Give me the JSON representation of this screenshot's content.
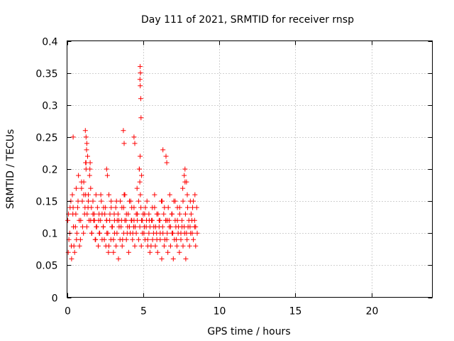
{
  "chart_data": {
    "type": "scatter",
    "title": "Day 111 of 2021, SRMTID for receiver rnsp",
    "xlabel": "GPS time / hours",
    "ylabel": "SRMTID / TECUs",
    "xlim": [
      0,
      24
    ],
    "ylim": [
      0,
      0.4
    ],
    "grid": true,
    "x_ticks": [
      0,
      5,
      10,
      15,
      20
    ],
    "x_tick_labels": [
      "0",
      "5",
      "10",
      "15",
      "20"
    ],
    "y_ticks": [
      0,
      0.05,
      0.1,
      0.15,
      0.2,
      0.25,
      0.3,
      0.35,
      0.4
    ],
    "y_tick_labels": [
      "0",
      "0.05",
      "0.1",
      "0.15",
      "0.2",
      "0.25",
      "0.3",
      "0.35",
      "0.4"
    ],
    "marker": "+",
    "marker_color": "#ff0000",
    "series": [
      {
        "x": [
          0.05,
          0.12,
          0.2,
          0.28,
          0.35,
          0.42,
          0.5,
          0.58,
          0.65,
          0.72,
          0.8,
          0.88,
          0.95,
          1.02,
          1.1,
          1.18,
          1.25,
          1.32,
          1.4,
          1.48,
          1.55,
          1.62,
          1.7,
          1.78,
          1.85,
          1.92,
          2.0,
          2.08,
          2.15,
          2.22,
          2.3,
          2.38,
          2.45,
          2.52,
          2.6,
          2.68,
          2.75,
          2.82,
          2.9,
          2.98,
          3.05,
          3.12,
          3.2,
          3.28,
          3.35,
          3.42,
          3.5,
          3.58,
          3.65,
          3.72,
          3.8,
          3.88,
          3.95,
          4.02,
          4.1,
          4.18,
          4.25,
          4.32,
          4.4,
          4.48,
          4.55,
          4.62,
          4.7,
          4.75,
          4.78,
          4.8,
          4.82,
          4.85,
          4.9,
          4.95,
          5.0,
          5.08,
          5.15,
          5.22,
          5.3,
          5.38,
          5.45,
          5.52,
          5.6,
          5.68,
          5.75,
          5.82,
          5.9,
          5.98,
          6.05,
          6.12,
          6.2,
          6.28,
          6.35,
          6.42,
          6.5,
          6.58,
          6.65,
          6.72,
          6.8,
          6.88,
          6.95,
          7.02,
          7.1,
          7.18,
          7.25,
          7.32,
          7.4,
          7.48,
          7.55,
          7.62,
          7.7,
          7.78,
          7.85,
          7.92,
          8.0,
          8.08,
          8.15,
          8.22,
          8.3,
          8.38,
          8.45,
          8.52,
          0.08,
          0.18,
          0.3,
          0.38,
          0.45,
          0.55,
          0.62,
          0.7,
          0.82,
          0.9,
          1.0,
          1.08,
          1.15,
          1.22,
          1.3,
          1.38,
          1.45,
          1.55,
          1.62,
          1.7,
          1.8,
          1.88,
          1.95,
          2.05,
          2.12,
          2.2,
          2.3,
          2.38,
          2.48,
          2.55,
          2.62,
          2.72,
          2.8,
          2.88,
          2.95,
          3.05,
          3.12,
          3.22,
          3.3,
          3.38,
          3.48,
          3.55,
          3.62,
          3.72,
          3.8,
          3.9,
          3.98,
          4.05,
          4.15,
          4.22,
          4.3,
          4.38,
          4.45,
          4.55,
          4.62,
          4.7,
          4.78,
          4.88,
          4.95,
          5.05,
          5.12,
          5.2,
          5.3,
          5.38,
          5.45,
          5.55,
          5.62,
          5.7,
          5.8,
          5.88,
          5.95,
          6.05,
          6.12,
          6.22,
          6.3,
          6.38,
          6.48,
          6.55,
          6.62,
          6.72,
          6.8,
          6.9,
          6.98,
          7.05,
          7.15,
          7.22,
          7.3,
          7.38,
          7.48,
          7.55,
          7.62,
          7.72,
          7.8,
          7.88,
          7.95,
          8.05,
          8.12,
          8.2,
          8.3,
          8.38,
          8.45,
          8.55,
          0.1,
          0.25,
          0.4,
          0.6,
          0.75,
          0.95,
          1.1,
          1.25,
          1.4,
          1.6,
          1.75,
          1.9,
          2.1,
          2.25,
          2.4,
          2.6,
          2.75,
          2.9,
          3.1,
          3.25,
          3.4,
          3.6,
          3.75,
          3.9,
          4.1,
          4.25,
          4.4,
          4.6,
          4.75,
          4.9,
          5.1,
          5.25,
          5.4,
          5.6,
          5.75,
          5.9,
          6.1,
          6.25,
          6.4,
          6.6,
          6.75,
          6.9,
          7.1,
          7.25,
          7.4,
          7.6,
          7.75,
          7.9,
          8.1,
          8.25,
          8.4,
          1.2,
          1.25,
          1.3,
          1.35,
          1.22,
          1.28,
          1.5,
          1.52,
          4.8,
          4.82,
          4.79,
          4.81,
          4.84,
          4.86,
          0.4,
          6.3,
          7.7,
          7.75,
          7.85,
          3.7,
          3.75,
          4.4,
          4.45,
          6.5,
          6.55,
          2.6,
          2.65
        ],
        "y": [
          0.12,
          0.09,
          0.14,
          0.08,
          0.16,
          0.11,
          0.07,
          0.13,
          0.1,
          0.15,
          0.12,
          0.09,
          0.17,
          0.11,
          0.18,
          0.14,
          0.2,
          0.13,
          0.16,
          0.19,
          0.12,
          0.1,
          0.15,
          0.13,
          0.09,
          0.11,
          0.14,
          0.12,
          0.1,
          0.16,
          0.13,
          0.11,
          0.09,
          0.14,
          0.12,
          0.1,
          0.08,
          0.13,
          0.15,
          0.11,
          0.09,
          0.12,
          0.14,
          0.1,
          0.13,
          0.11,
          0.15,
          0.12,
          0.09,
          0.14,
          0.16,
          0.12,
          0.1,
          0.13,
          0.11,
          0.15,
          0.12,
          0.1,
          0.14,
          0.11,
          0.13,
          0.12,
          0.15,
          0.2,
          0.18,
          0.22,
          0.16,
          0.14,
          0.12,
          0.1,
          0.13,
          0.11,
          0.14,
          0.12,
          0.09,
          0.13,
          0.11,
          0.08,
          0.12,
          0.1,
          0.14,
          0.11,
          0.09,
          0.13,
          0.12,
          0.1,
          0.15,
          0.11,
          0.13,
          0.09,
          0.12,
          0.1,
          0.14,
          0.12,
          0.11,
          0.13,
          0.1,
          0.15,
          0.12,
          0.09,
          0.14,
          0.11,
          0.13,
          0.1,
          0.12,
          0.15,
          0.11,
          0.13,
          0.1,
          0.14,
          0.12,
          0.11,
          0.13,
          0.1,
          0.15,
          0.12,
          0.11,
          0.14,
          0.07,
          0.1,
          0.06,
          0.13,
          0.08,
          0.11,
          0.09,
          0.14,
          0.08,
          0.12,
          0.15,
          0.1,
          0.13,
          0.16,
          0.11,
          0.14,
          0.12,
          0.17,
          0.1,
          0.13,
          0.12,
          0.09,
          0.11,
          0.08,
          0.1,
          0.12,
          0.09,
          0.11,
          0.13,
          0.08,
          0.1,
          0.07,
          0.12,
          0.09,
          0.11,
          0.07,
          0.1,
          0.08,
          0.12,
          0.06,
          0.09,
          0.11,
          0.08,
          0.1,
          0.12,
          0.09,
          0.11,
          0.07,
          0.1,
          0.12,
          0.09,
          0.11,
          0.08,
          0.1,
          0.13,
          0.09,
          0.11,
          0.08,
          0.12,
          0.1,
          0.09,
          0.11,
          0.08,
          0.1,
          0.07,
          0.12,
          0.09,
          0.11,
          0.08,
          0.1,
          0.07,
          0.11,
          0.09,
          0.06,
          0.1,
          0.08,
          0.12,
          0.09,
          0.07,
          0.11,
          0.08,
          0.1,
          0.06,
          0.09,
          0.11,
          0.08,
          0.1,
          0.07,
          0.09,
          0.11,
          0.08,
          0.1,
          0.06,
          0.09,
          0.11,
          0.08,
          0.1,
          0.12,
          0.09,
          0.11,
          0.08,
          0.1,
          0.13,
          0.15,
          0.14,
          0.17,
          0.19,
          0.18,
          0.16,
          0.21,
          0.15,
          0.14,
          0.12,
          0.16,
          0.13,
          0.15,
          0.14,
          0.12,
          0.16,
          0.14,
          0.13,
          0.15,
          0.12,
          0.14,
          0.16,
          0.13,
          0.15,
          0.14,
          0.12,
          0.17,
          0.2,
          0.19,
          0.13,
          0.15,
          0.12,
          0.14,
          0.16,
          0.13,
          0.12,
          0.15,
          0.14,
          0.12,
          0.16,
          0.13,
          0.15,
          0.12,
          0.14,
          0.17,
          0.18,
          0.16,
          0.15,
          0.14,
          0.16,
          0.26,
          0.25,
          0.24,
          0.22,
          0.21,
          0.23,
          0.2,
          0.21,
          0.36,
          0.35,
          0.34,
          0.33,
          0.31,
          0.28,
          0.25,
          0.23,
          0.19,
          0.2,
          0.18,
          0.26,
          0.24,
          0.25,
          0.24,
          0.22,
          0.21,
          0.2,
          0.19
        ]
      }
    ]
  }
}
